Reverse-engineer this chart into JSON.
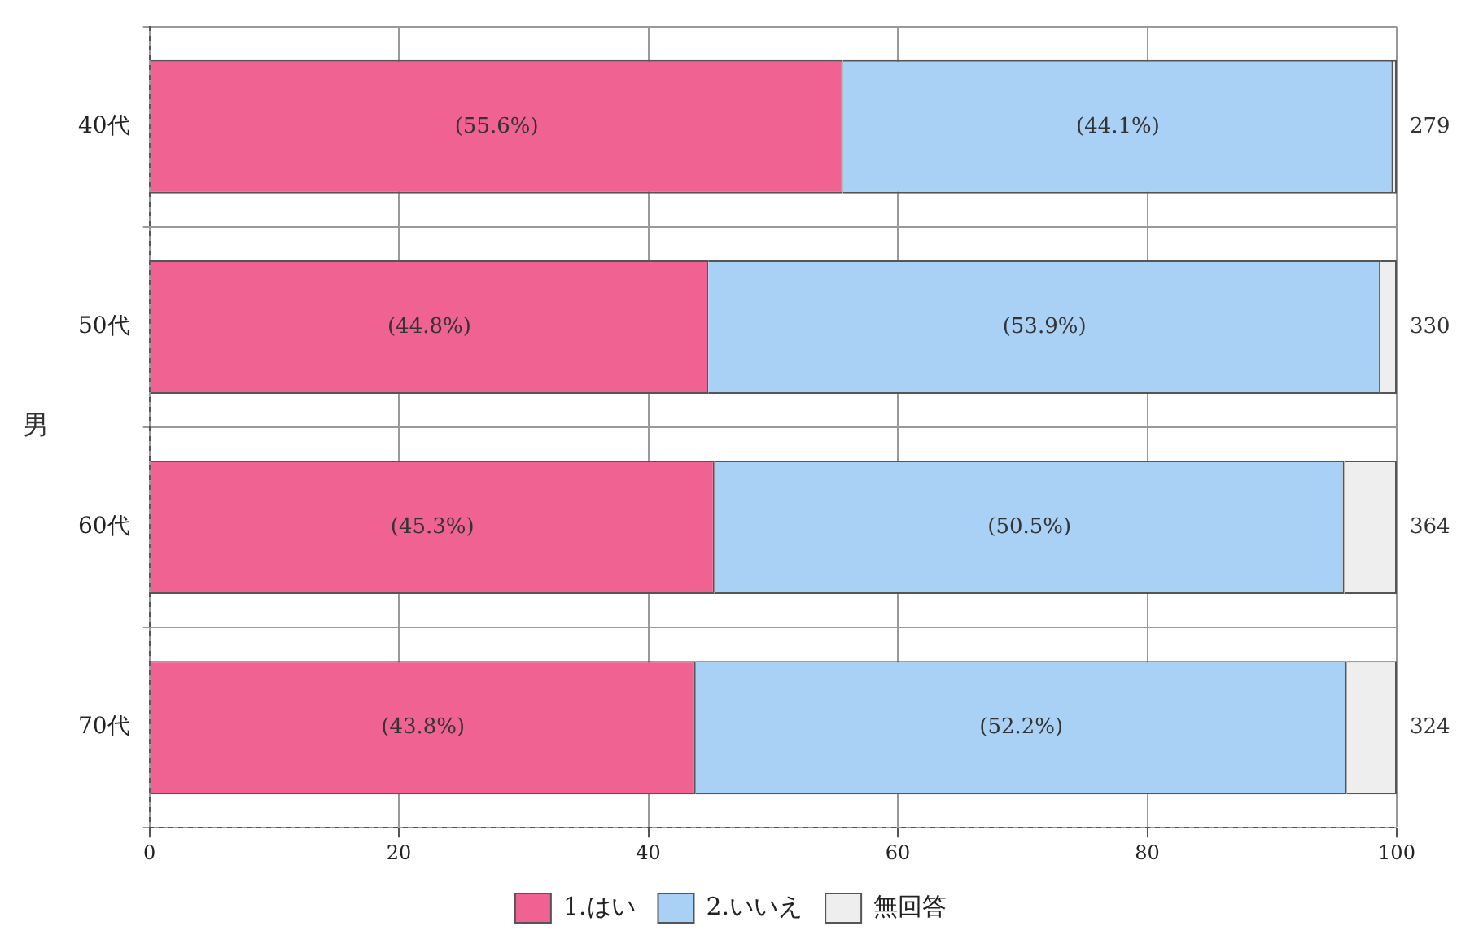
{
  "chart_data": {
    "type": "bar",
    "orientation": "horizontal",
    "stacked": true,
    "ylabel": "男",
    "categories": [
      "40代",
      "50代",
      "60代",
      "70代"
    ],
    "series": [
      {
        "name": "1.はい",
        "color": "#f06292",
        "values": [
          55.6,
          44.8,
          45.3,
          43.8
        ],
        "value_labels": [
          "(55.6%)",
          "(44.8%)",
          "(45.3%)",
          "(43.8%)"
        ]
      },
      {
        "name": "2.いいえ",
        "color": "#a9d0f5",
        "values": [
          44.1,
          53.9,
          50.5,
          52.2
        ],
        "value_labels": [
          "(44.1%)",
          "(53.9%)",
          "(50.5%)",
          "(52.2%)"
        ]
      },
      {
        "name": "無回答",
        "color": "#eeeeee",
        "values": [
          0.3,
          1.3,
          4.2,
          4.0
        ]
      }
    ],
    "xlim": [
      0,
      100
    ],
    "xticks": [
      0,
      20,
      40,
      60,
      80,
      100
    ],
    "grid": true,
    "legend": "bottom",
    "annotations": [
      "279",
      "330",
      "364",
      "324"
    ]
  }
}
